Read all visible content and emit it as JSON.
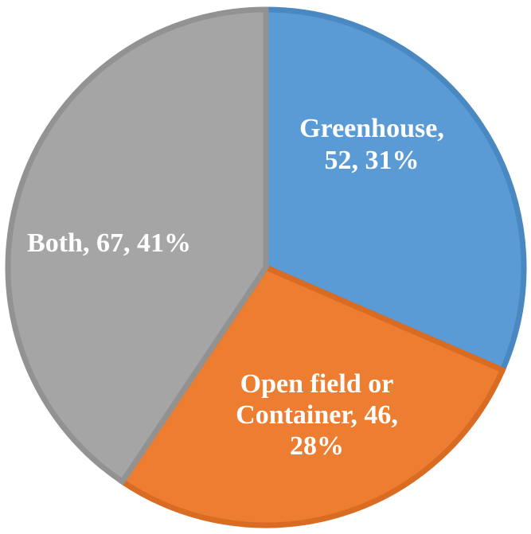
{
  "chart_data": {
    "type": "pie",
    "title": "",
    "slices": [
      {
        "category": "Greenhouse",
        "value": 52,
        "percent": "31%",
        "fill": "#5B9BD5",
        "edge": "#4A88C2",
        "label_lines": [
          "Greenhouse,",
          "52, 31%"
        ]
      },
      {
        "category": "Open field or Container",
        "value": 46,
        "percent": "28%",
        "fill": "#ED7D31",
        "edge": "#D96B22",
        "label_lines": [
          "Open field or",
          "Container, 46,",
          "28%"
        ]
      },
      {
        "category": "Both",
        "value": 67,
        "percent": "41%",
        "fill": "#A5A5A5",
        "edge": "#929292",
        "label_lines": [
          "Both, 67, 41%"
        ]
      }
    ],
    "start_angle": "12 o'clock",
    "direction": "clockwise",
    "legend": "none",
    "data_labels": "inside, category + value + percent"
  }
}
